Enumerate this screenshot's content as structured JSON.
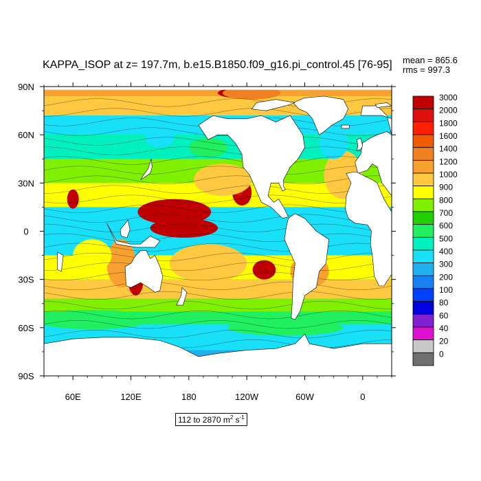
{
  "title": "KAPPA_ISOP at z= 197.7m, b.e15.B1850.f09_g16.pi_control.45 [76-95]",
  "stats": {
    "mean": "mean = 865.6",
    "rms": "rms = 997.3"
  },
  "range_label": {
    "text": "112 to 2870 m",
    "sup": "2",
    "unit": " s",
    "unit_sup": "-1"
  },
  "chart_data": {
    "type": "heatmap",
    "title": "KAPPA_ISOP at z= 197.7m, b.e15.B1850.f09_g16.pi_control.45 [76-95]",
    "xlabel": "",
    "ylabel": "",
    "x_tick_labels": [
      "60E",
      "120E",
      "180",
      "120W",
      "60W",
      "0"
    ],
    "x_tick_lon": [
      60,
      120,
      180,
      240,
      300,
      360
    ],
    "lon_range": [
      30,
      390
    ],
    "y_tick_labels": [
      "90N",
      "60N",
      "30N",
      "0",
      "30S",
      "60S",
      "90S"
    ],
    "y_tick_lat": [
      90,
      60,
      30,
      0,
      -30,
      -60,
      -90
    ],
    "lat_range": [
      -90,
      90
    ],
    "colorbar": {
      "labels": [
        "3000",
        "2000",
        "1800",
        "1600",
        "1400",
        "1200",
        "1000",
        "900",
        "800",
        "700",
        "600",
        "500",
        "400",
        "300",
        "200",
        "100",
        "80",
        "60",
        "40",
        "20",
        "0"
      ],
      "colors": [
        "#c00000",
        "#e01010",
        "#ff2000",
        "#f05a00",
        "#f08020",
        "#f8a030",
        "#ffc840",
        "#ffff00",
        "#80f000",
        "#20d000",
        "#20f060",
        "#00f0c0",
        "#18e0f8",
        "#20b0f0",
        "#1880f0",
        "#0040ff",
        "#0000e0",
        "#8020d0",
        "#e010d0",
        "#c8c8c8",
        "#707070"
      ]
    },
    "mean": 865.6,
    "rms": 997.3,
    "data_min": 112,
    "data_max": 2870,
    "units": "m2 s-1",
    "grid": false
  },
  "colors": {
    "land": "#ffffff",
    "frame": "#000000"
  }
}
